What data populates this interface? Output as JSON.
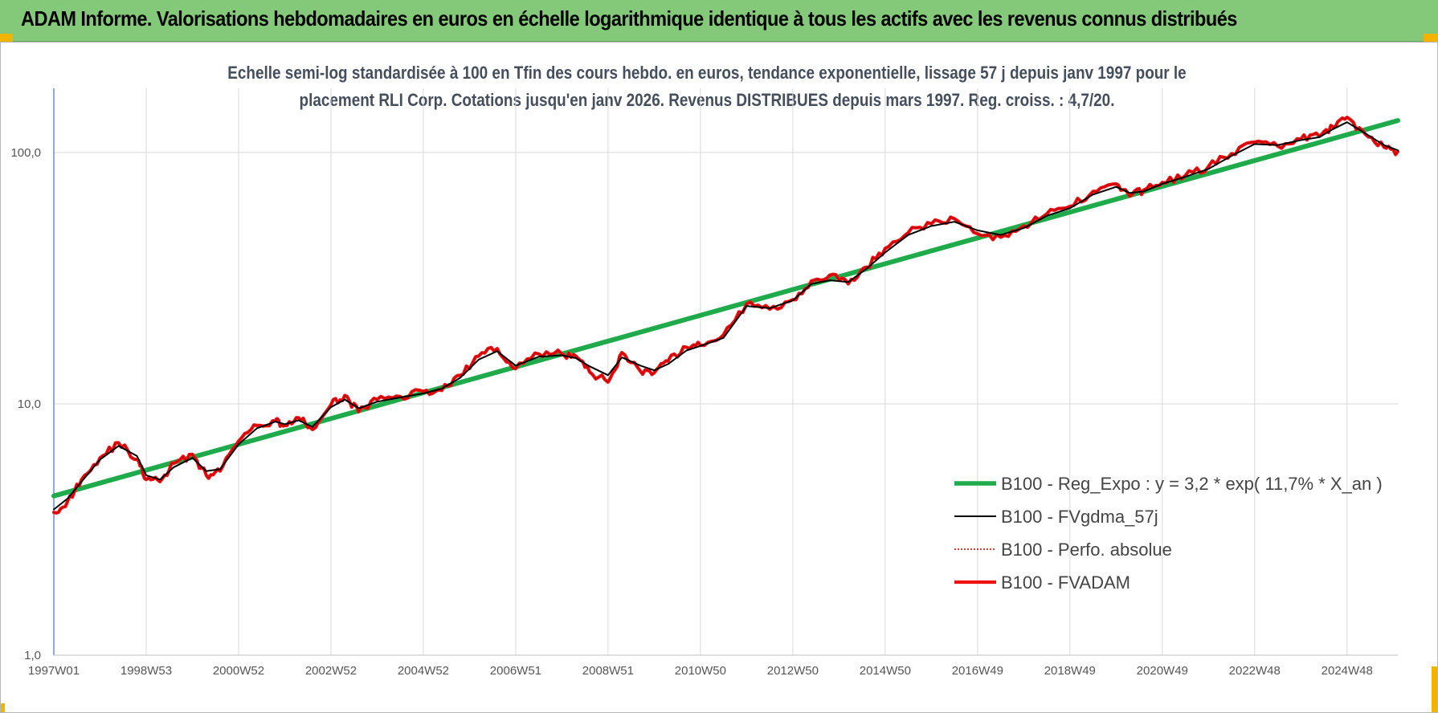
{
  "window": {
    "title": "ADAM Informe. Valorisations hebdomadaires en euros en échelle logarithmique identique à tous les actifs avec les revenus connus distribués"
  },
  "colors": {
    "title_bar": "#84c97a",
    "reg_expo": "#1faa4b",
    "fvgdma": "#000000",
    "perfo": "#c00000",
    "fvadam": "#ee1111"
  },
  "chart_data": {
    "type": "line",
    "title_line1": "Echelle semi-log standardisée à 100 en Tfin des cours hebdo. en euros, tendance exponentielle, lissage 57 j depuis janv 1997 pour le",
    "title_line2": "placement RLI Corp. Cotations jusqu'en janv 2026. Revenus DISTRIBUES depuis mars 1997. Reg. croiss. : 4,7/20.",
    "y_scale": "log",
    "ylim": [
      1,
      180
    ],
    "xlim": [
      1997.0,
      2026.1
    ],
    "y_ticks": [
      {
        "value": 1,
        "label": "1,0"
      },
      {
        "value": 10,
        "label": "10,0"
      },
      {
        "value": 100,
        "label": "100,0"
      }
    ],
    "x_ticks": [
      {
        "value": 1997.0,
        "label": "1997W01"
      },
      {
        "value": 1999.0,
        "label": "1998W53"
      },
      {
        "value": 2001.0,
        "label": "2000W52"
      },
      {
        "value": 2003.0,
        "label": "2002W52"
      },
      {
        "value": 2005.0,
        "label": "2004W52"
      },
      {
        "value": 2007.0,
        "label": "2006W51"
      },
      {
        "value": 2009.0,
        "label": "2008W51"
      },
      {
        "value": 2011.0,
        "label": "2010W50"
      },
      {
        "value": 2013.0,
        "label": "2012W50"
      },
      {
        "value": 2015.0,
        "label": "2014W50"
      },
      {
        "value": 2017.0,
        "label": "2016W49"
      },
      {
        "value": 2019.0,
        "label": "2018W49"
      },
      {
        "value": 2021.0,
        "label": "2020W49"
      },
      {
        "value": 2023.0,
        "label": "2022W48"
      },
      {
        "value": 2025.0,
        "label": "2024W48"
      }
    ],
    "grid": true,
    "legend_position": "bottom-right",
    "series": [
      {
        "name": "B100 - Reg_Expo : y = 3,2 * exp( 11,7% *  X_an )",
        "style": "solid-thick",
        "color": "#1faa4b",
        "x": [
          1997.0,
          2026.1
        ],
        "y": [
          4.3,
          134
        ]
      },
      {
        "name": "B100 - FVgdma_57j",
        "style": "solid-thin",
        "color": "#000000",
        "x": [
          1997.0,
          1997.3,
          1997.6,
          1998.0,
          1998.4,
          1998.8,
          1999.0,
          1999.3,
          1999.6,
          2000.0,
          2000.3,
          2000.6,
          2001.0,
          2001.4,
          2001.8,
          2002.0,
          2002.3,
          2002.6,
          2003.0,
          2003.3,
          2003.6,
          2004.0,
          2004.5,
          2005.0,
          2005.4,
          2005.8,
          2006.2,
          2006.6,
          2007.0,
          2007.5,
          2008.0,
          2008.3,
          2008.6,
          2009.0,
          2009.3,
          2009.7,
          2010.0,
          2010.3,
          2010.7,
          2011.0,
          2011.5,
          2012.0,
          2012.5,
          2013.0,
          2013.4,
          2013.8,
          2014.2,
          2014.6,
          2015.0,
          2015.5,
          2016.0,
          2016.5,
          2017.0,
          2017.5,
          2018.0,
          2018.5,
          2019.0,
          2019.5,
          2020.0,
          2020.3,
          2020.6,
          2021.0,
          2021.5,
          2022.0,
          2022.5,
          2023.0,
          2023.5,
          2024.0,
          2024.4,
          2024.7,
          2025.0,
          2025.4,
          2025.8,
          2026.1
        ],
        "y": [
          3.8,
          4.2,
          4.9,
          6.0,
          6.8,
          6.2,
          5.2,
          5.0,
          5.6,
          6.1,
          5.4,
          5.5,
          6.9,
          8.0,
          8.5,
          8.3,
          8.6,
          8.1,
          9.7,
          10.4,
          9.6,
          10.2,
          10.6,
          11.0,
          11.5,
          12.7,
          15.0,
          16.2,
          14.2,
          15.4,
          15.6,
          15.2,
          14.1,
          13.0,
          15.3,
          14.2,
          13.6,
          14.4,
          16.3,
          17.0,
          18.3,
          24.5,
          24.0,
          25.8,
          30.0,
          31.0,
          30.5,
          34.5,
          40.0,
          47.0,
          51.0,
          53.0,
          49.0,
          47.0,
          50.0,
          56.0,
          60.0,
          68.0,
          73.0,
          69.0,
          70.0,
          75.0,
          80.0,
          86.0,
          97.0,
          108.0,
          107.0,
          112.0,
          115.0,
          124.0,
          132.0,
          119.0,
          107.0,
          102.0
        ]
      },
      {
        "name": "B100 - Perfo. absolue",
        "style": "dotted",
        "color": "#c00000",
        "x": [
          1997.0,
          1997.3,
          1997.6,
          1998.0,
          1998.4,
          1998.8,
          1999.0,
          1999.3,
          1999.6,
          2000.0,
          2000.3,
          2000.6,
          2001.0,
          2001.4,
          2001.8,
          2002.0,
          2002.3,
          2002.6,
          2003.0,
          2003.3,
          2003.6,
          2004.0,
          2004.5,
          2005.0,
          2005.4,
          2005.8,
          2006.2,
          2006.6,
          2007.0,
          2007.5,
          2008.0,
          2008.3,
          2008.6,
          2009.0,
          2009.3,
          2009.7,
          2010.0,
          2010.3,
          2010.7,
          2011.0,
          2011.5,
          2012.0,
          2012.5,
          2013.0,
          2013.4,
          2013.8,
          2014.2,
          2014.6,
          2015.0,
          2015.5,
          2016.0,
          2016.5,
          2017.0,
          2017.5,
          2018.0,
          2018.5,
          2019.0,
          2019.5,
          2020.0,
          2020.3,
          2020.6,
          2021.0,
          2021.5,
          2022.0,
          2022.5,
          2023.0,
          2023.5,
          2024.0,
          2024.4,
          2024.7,
          2025.0,
          2025.4,
          2025.8,
          2026.1
        ],
        "y": [
          3.7,
          4.1,
          5.0,
          6.1,
          7.0,
          6.0,
          5.0,
          4.9,
          5.8,
          6.3,
          5.2,
          5.4,
          7.1,
          8.2,
          8.6,
          8.2,
          8.8,
          7.9,
          9.9,
          10.8,
          9.3,
          10.4,
          10.7,
          11.2,
          11.3,
          13.0,
          15.5,
          16.6,
          13.8,
          15.8,
          15.8,
          15.5,
          13.4,
          12.2,
          16.0,
          13.5,
          13.3,
          14.8,
          16.8,
          17.1,
          18.8,
          25.0,
          23.8,
          26.0,
          30.8,
          32.5,
          30.0,
          35.0,
          41.5,
          48.0,
          52.0,
          54.5,
          47.5,
          46.0,
          51.0,
          57.0,
          61.0,
          70.0,
          75.0,
          67.0,
          71.0,
          76.0,
          81.0,
          88.0,
          99.0,
          110.0,
          106.0,
          113.0,
          116.0,
          126.0,
          138.0,
          118.0,
          105.0,
          101.0
        ]
      },
      {
        "name": "B100 - FVADAM",
        "style": "solid-thick",
        "color": "#ee1111",
        "x": [
          1997.0,
          1997.3,
          1997.6,
          1998.0,
          1998.4,
          1998.8,
          1999.0,
          1999.3,
          1999.6,
          2000.0,
          2000.3,
          2000.6,
          2001.0,
          2001.4,
          2001.8,
          2002.0,
          2002.3,
          2002.6,
          2003.0,
          2003.3,
          2003.6,
          2004.0,
          2004.5,
          2005.0,
          2005.4,
          2005.8,
          2006.2,
          2006.6,
          2007.0,
          2007.5,
          2008.0,
          2008.3,
          2008.6,
          2009.0,
          2009.3,
          2009.7,
          2010.0,
          2010.3,
          2010.7,
          2011.0,
          2011.5,
          2012.0,
          2012.5,
          2013.0,
          2013.4,
          2013.8,
          2014.2,
          2014.6,
          2015.0,
          2015.5,
          2016.0,
          2016.5,
          2017.0,
          2017.5,
          2018.0,
          2018.5,
          2019.0,
          2019.5,
          2020.0,
          2020.3,
          2020.6,
          2021.0,
          2021.5,
          2022.0,
          2022.5,
          2023.0,
          2023.5,
          2024.0,
          2024.4,
          2024.7,
          2025.0,
          2025.4,
          2025.8,
          2026.1
        ],
        "y": [
          3.7,
          4.1,
          5.0,
          6.1,
          7.0,
          6.0,
          5.0,
          4.9,
          5.8,
          6.3,
          5.2,
          5.4,
          7.1,
          8.2,
          8.6,
          8.2,
          8.8,
          7.9,
          9.9,
          10.8,
          9.3,
          10.4,
          10.7,
          11.2,
          11.3,
          13.0,
          15.5,
          16.6,
          13.8,
          15.8,
          15.8,
          15.5,
          13.4,
          12.2,
          16.0,
          13.5,
          13.3,
          14.8,
          16.8,
          17.1,
          18.8,
          25.0,
          23.8,
          26.0,
          30.8,
          32.5,
          30.0,
          35.0,
          41.5,
          48.0,
          52.0,
          54.5,
          47.5,
          46.0,
          51.0,
          57.0,
          61.0,
          70.0,
          75.0,
          67.0,
          71.0,
          76.0,
          81.0,
          88.0,
          99.0,
          110.0,
          106.0,
          113.0,
          116.0,
          126.0,
          138.0,
          118.0,
          105.0,
          101.0
        ]
      }
    ]
  }
}
